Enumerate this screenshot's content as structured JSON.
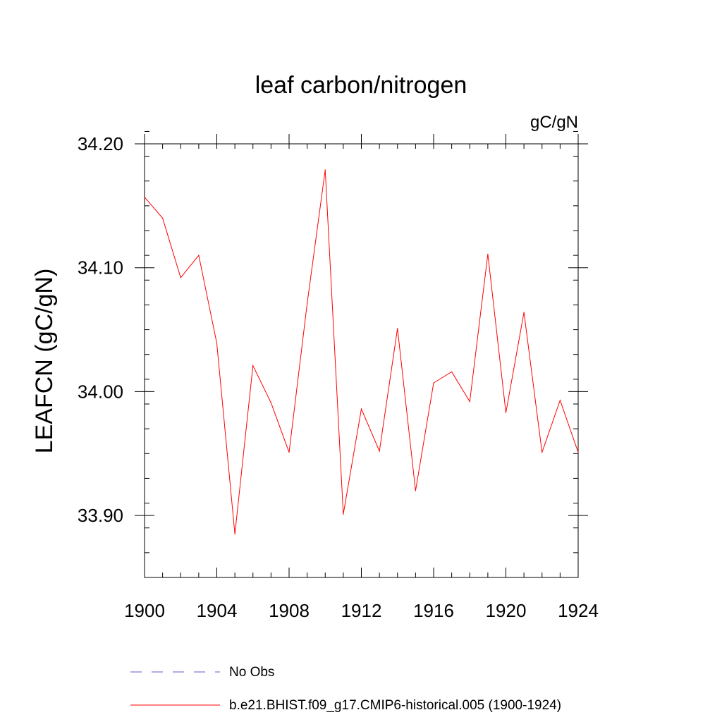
{
  "chart_data": {
    "type": "line",
    "title": "leaf carbon/nitrogen",
    "units_label": "gC/gN",
    "ylabel": "LEAFCN  (gC/gN)",
    "xlabel": "",
    "xlim": [
      1900,
      1924
    ],
    "ylim": [
      33.85,
      34.2
    ],
    "x_ticks": [
      1900,
      1904,
      1908,
      1912,
      1916,
      1920,
      1924
    ],
    "x_tick_labels": [
      "1900",
      "1904",
      "1908",
      "1912",
      "1916",
      "1920",
      "1924"
    ],
    "y_ticks": [
      33.9,
      34.0,
      34.1,
      34.2
    ],
    "y_tick_labels": [
      "33.90",
      "34.00",
      "34.10",
      "34.20"
    ],
    "x_minor_step": 1,
    "y_minor_step": 0.02,
    "series": [
      {
        "name": "b.e21.BHIST.f09_g17.CMIP6-historical.005 (1900-1924)",
        "color": "#ff0000",
        "style": "solid",
        "x": [
          1900,
          1901,
          1902,
          1903,
          1904,
          1905,
          1906,
          1907,
          1908,
          1909,
          1910,
          1911,
          1912,
          1913,
          1914,
          1915,
          1916,
          1917,
          1918,
          1919,
          1920,
          1921,
          1922,
          1923,
          1924
        ],
        "values": [
          34.157,
          34.14,
          34.092,
          34.11,
          34.039,
          33.885,
          34.021,
          33.991,
          33.951,
          34.071,
          34.179,
          33.901,
          33.986,
          33.952,
          34.051,
          33.92,
          34.007,
          34.016,
          33.992,
          34.111,
          33.983,
          34.064,
          33.951,
          33.993,
          33.951
        ]
      }
    ],
    "legend": {
      "position": "bottom",
      "entries": [
        {
          "label": "No Obs",
          "color": "#6a5acd",
          "style": "dashed"
        },
        {
          "label": "b.e21.BHIST.f09_g17.CMIP6-historical.005 (1900-1924)",
          "color": "#ff0000",
          "style": "solid"
        }
      ]
    }
  }
}
